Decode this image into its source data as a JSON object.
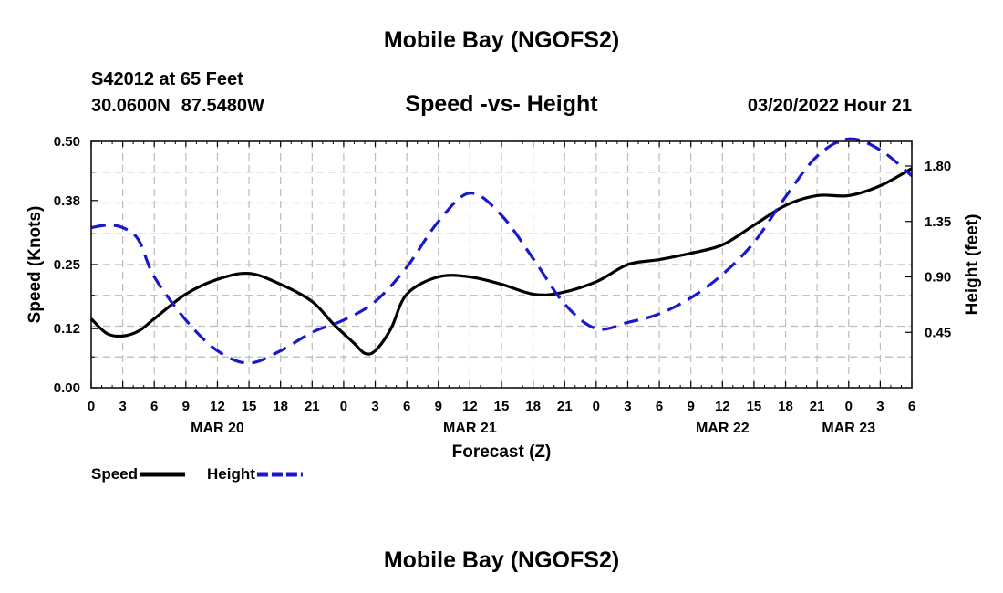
{
  "header": {
    "title": "Mobile Bay (NGOFS2)",
    "station": "S42012 at 65 Feet",
    "lat": "30.0600N",
    "lon": "87.5480W",
    "datetime": "03/20/2022 Hour 21"
  },
  "footer": {
    "title": "Mobile Bay (NGOFS2)"
  },
  "chart_data": {
    "type": "line",
    "title": "Speed -vs- Height",
    "xlabel": "Forecast (Z)",
    "ylabel": "Speed (Knots)",
    "y2label": "Height (feet)",
    "x_hours_range": [
      0,
      78
    ],
    "x_tick_labels": [
      "0",
      "3",
      "6",
      "9",
      "12",
      "15",
      "18",
      "21",
      "0",
      "3",
      "6",
      "9",
      "12",
      "15",
      "18",
      "21",
      "0",
      "3",
      "6",
      "9",
      "12",
      "15",
      "18",
      "21",
      "0",
      "3",
      "6"
    ],
    "day_labels": [
      {
        "label": "MAR 20",
        "hour": 12
      },
      {
        "label": "MAR 21",
        "hour": 36
      },
      {
        "label": "MAR 22",
        "hour": 60
      },
      {
        "label": "MAR 23",
        "hour": 72
      }
    ],
    "ylim": [
      0,
      0.5
    ],
    "yticks": [
      0.0,
      0.12,
      0.25,
      0.38,
      0.5
    ],
    "ytick_labels": [
      "0.00",
      "0.12",
      "0.25",
      "0.38",
      "0.50"
    ],
    "y2lim": [
      0.0,
      2.0
    ],
    "y2ticks": [
      0.45,
      0.9,
      1.35,
      1.8
    ],
    "y2tick_labels": [
      "0.45",
      "0.90",
      "1.35",
      "1.80"
    ],
    "grid": true,
    "series": [
      {
        "name": "Speed",
        "axis": "left",
        "color": "#000000",
        "style": "solid",
        "x": [
          0,
          1.5,
          3,
          4.5,
          6,
          9,
          12,
          15,
          18,
          21,
          23,
          25,
          26,
          27,
          28.5,
          30,
          33,
          36,
          39,
          42,
          44.5,
          48,
          51,
          54,
          57,
          60,
          63,
          66,
          69,
          72,
          75,
          78
        ],
        "values": [
          0.14,
          0.11,
          0.105,
          0.115,
          0.14,
          0.19,
          0.22,
          0.232,
          0.21,
          0.175,
          0.13,
          0.09,
          0.07,
          0.075,
          0.12,
          0.19,
          0.225,
          0.225,
          0.21,
          0.19,
          0.192,
          0.215,
          0.25,
          0.26,
          0.273,
          0.29,
          0.33,
          0.37,
          0.39,
          0.39,
          0.41,
          0.445
        ]
      },
      {
        "name": "Height",
        "axis": "right",
        "color": "#1919cc",
        "style": "dashed",
        "x": [
          0,
          1.5,
          3,
          4.5,
          6,
          9,
          12,
          15,
          18,
          21,
          24,
          27,
          30,
          33,
          36,
          39,
          42,
          45,
          48,
          51,
          54,
          57,
          60,
          63,
          66,
          69,
          72,
          75,
          78
        ],
        "values": [
          1.3,
          1.32,
          1.3,
          1.2,
          0.9,
          0.55,
          0.3,
          0.2,
          0.3,
          0.45,
          0.55,
          0.7,
          0.98,
          1.35,
          1.58,
          1.4,
          1.05,
          0.68,
          0.48,
          0.53,
          0.6,
          0.73,
          0.92,
          1.18,
          1.55,
          1.88,
          2.02,
          1.93,
          1.72
        ]
      }
    ],
    "legend": [
      {
        "label": "Speed",
        "color": "#000000",
        "style": "solid"
      },
      {
        "label": "Height",
        "color": "#1919cc",
        "style": "dashed"
      }
    ],
    "legend_position": "bottom-left"
  }
}
